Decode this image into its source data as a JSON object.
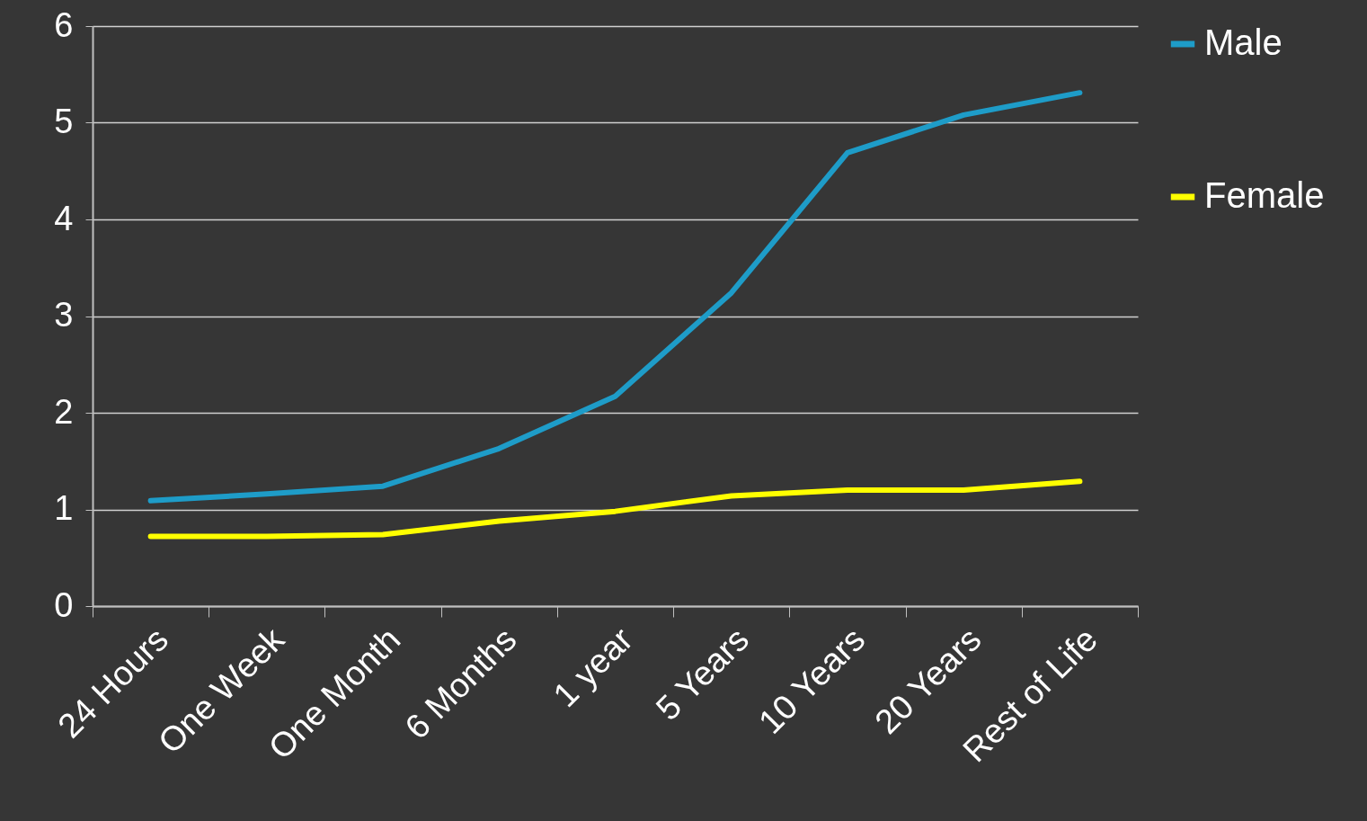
{
  "chart_data": {
    "type": "line",
    "categories": [
      "24 Hours",
      "One Week",
      "One Month",
      "6 Months",
      "1 year",
      "5 Years",
      "10 Years",
      "20 Years",
      "Rest of Life"
    ],
    "series": [
      {
        "name": "Male",
        "color": "#1e9cc8",
        "values": [
          1.09,
          1.16,
          1.24,
          1.63,
          2.17,
          3.24,
          4.69,
          5.08,
          5.31
        ]
      },
      {
        "name": "Female",
        "color": "#ffff00",
        "values": [
          0.72,
          0.72,
          0.74,
          0.88,
          0.98,
          1.14,
          1.2,
          1.2,
          1.29
        ]
      }
    ],
    "ylim": [
      0,
      6
    ],
    "yticks": [
      0,
      1,
      2,
      3,
      4,
      5,
      6
    ],
    "grid": "y",
    "legend": "right",
    "marker": "none",
    "line_style": "solid"
  }
}
